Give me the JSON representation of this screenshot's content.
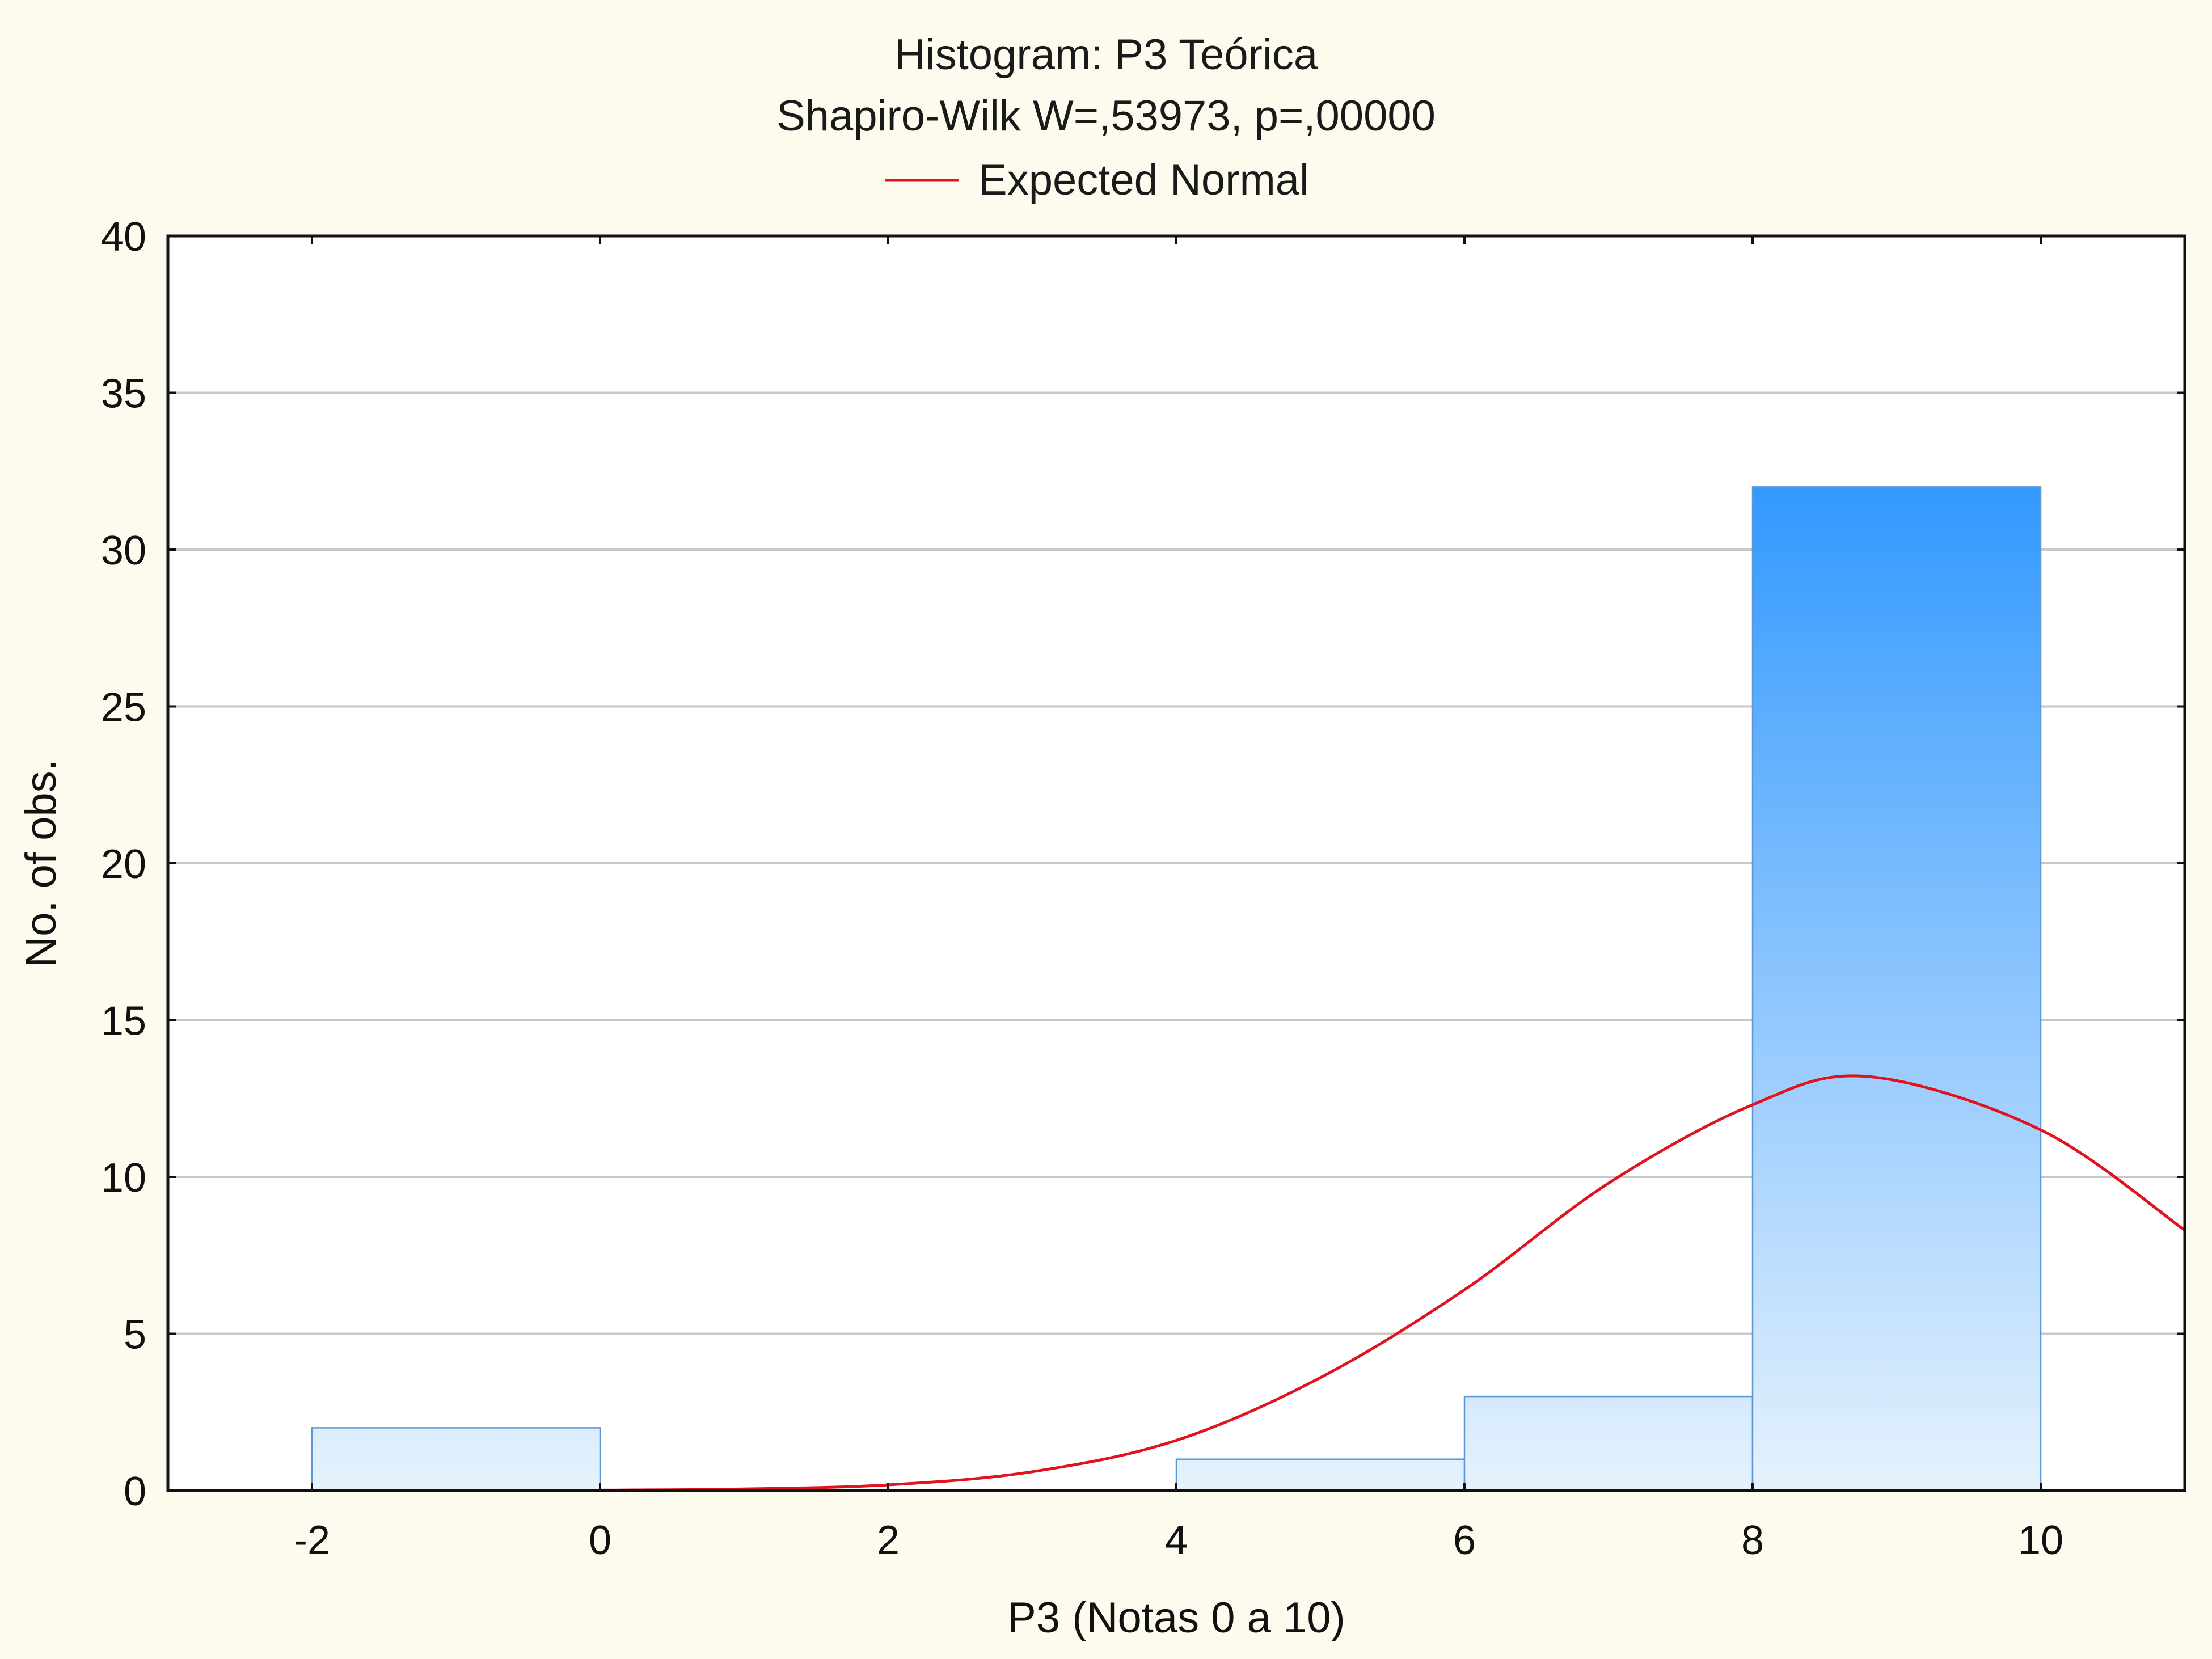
{
  "chart_data": {
    "type": "bar",
    "title": "Histogram: P3 Teórica",
    "subtitle": "Shapiro-Wilk W=,53973, p=,00000",
    "legend": [
      {
        "name": "Expected Normal",
        "color": "#e0141e",
        "type": "line"
      }
    ],
    "legend_position": "top-center",
    "xlabel": "P3 (Notas 0 a 10)",
    "ylabel": "No. of obs.",
    "xlim": [
      -3,
      11
    ],
    "ylim": [
      0,
      40
    ],
    "x_ticks": [
      -2,
      0,
      2,
      4,
      6,
      8,
      10
    ],
    "x_tick_labels": [
      "-2",
      "0",
      "2",
      "4",
      "6",
      "8",
      "10"
    ],
    "y_ticks": [
      0,
      5,
      10,
      15,
      20,
      25,
      30,
      35,
      40
    ],
    "y_tick_labels": [
      "0",
      "5",
      "10",
      "15",
      "20",
      "25",
      "30",
      "35",
      "40"
    ],
    "grid": "horizontal",
    "bins": [
      {
        "start": -2,
        "end": 0,
        "count": 2
      },
      {
        "start": 0,
        "end": 2,
        "count": 0
      },
      {
        "start": 2,
        "end": 4,
        "count": 0
      },
      {
        "start": 4,
        "end": 6,
        "count": 1
      },
      {
        "start": 6,
        "end": 8,
        "count": 3
      },
      {
        "start": 8,
        "end": 10,
        "count": 32
      }
    ],
    "expected_normal": {
      "name": "Expected Normal",
      "x": [
        0,
        1,
        2,
        3,
        4,
        5,
        6,
        7,
        8,
        8.8,
        10,
        11
      ],
      "y": [
        0.01,
        0.05,
        0.18,
        0.6,
        1.6,
        3.6,
        6.4,
        9.8,
        12.3,
        13.2,
        11.5,
        8.3
      ]
    },
    "colors": {
      "bar_top": "#3399ff",
      "bar_bottom": "#e6f2fd",
      "bar_edge": "#5a97d6",
      "curve": "#e0141e",
      "grid": "#c8c8c8",
      "plot_bg": "#ffffff",
      "page_bg": "#fdfaee"
    }
  }
}
